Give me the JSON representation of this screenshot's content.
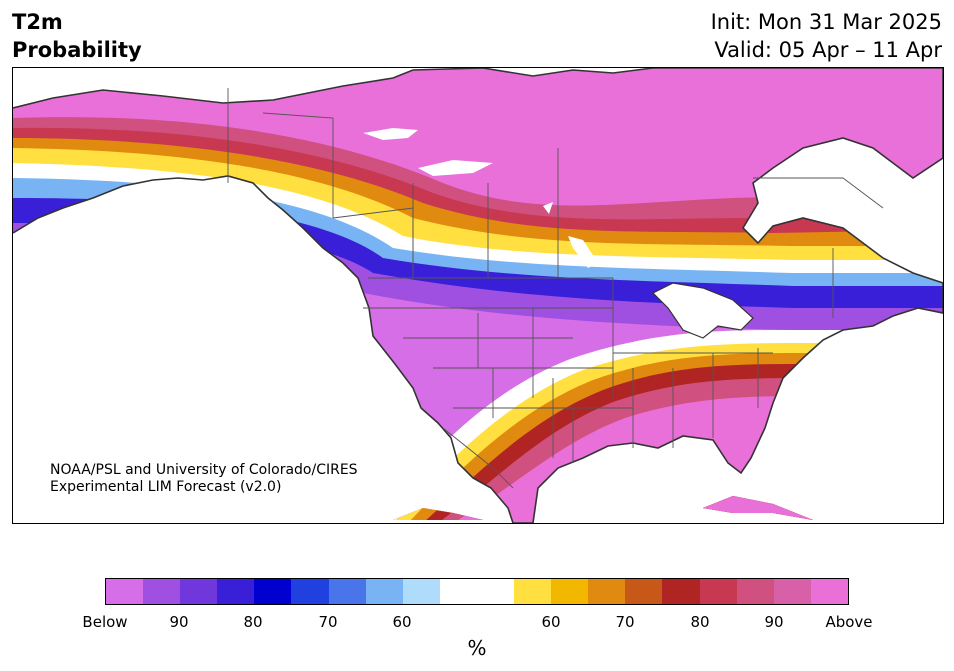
{
  "header": {
    "variable": "T2m",
    "field": "Probability",
    "init": "Init: Mon 31 Mar 2025",
    "valid": "Valid: 05 Apr – 11 Apr"
  },
  "credit": {
    "line1": "NOAA/PSL and University of Colorado/CIRES",
    "line2": "Experimental LIM Forecast (v2.0)"
  },
  "colorbar": {
    "unit": "%",
    "colors": [
      "#d66ee8",
      "#a050e0",
      "#7038dc",
      "#3a1fd8",
      "#0000d0",
      "#2040e0",
      "#4a74ea",
      "#78b4f4",
      "#b0dcfc",
      "#ffffff",
      "#ffffff",
      "#ffe040",
      "#f2b800",
      "#e08a10",
      "#c85818",
      "#b02424",
      "#c83850",
      "#d05080",
      "#d860a8",
      "#e870d8"
    ],
    "labels": [
      "Below",
      "90",
      "80",
      "70",
      "60",
      "60",
      "70",
      "80",
      "90",
      "Above"
    ]
  },
  "map": {
    "colors": {
      "below_extreme": "#d66ee8",
      "below_90": "#a050e0",
      "below_80": "#3a1fd8",
      "below_70": "#2040e0",
      "below_60": "#78b4f4",
      "near_normal": "#ffffff",
      "above_60": "#ffe040",
      "above_70": "#e08a10",
      "above_80": "#b02424",
      "above_90": "#d05080",
      "above_extreme": "#e870d8",
      "coastline": "#333333",
      "borders": "#555555"
    }
  }
}
